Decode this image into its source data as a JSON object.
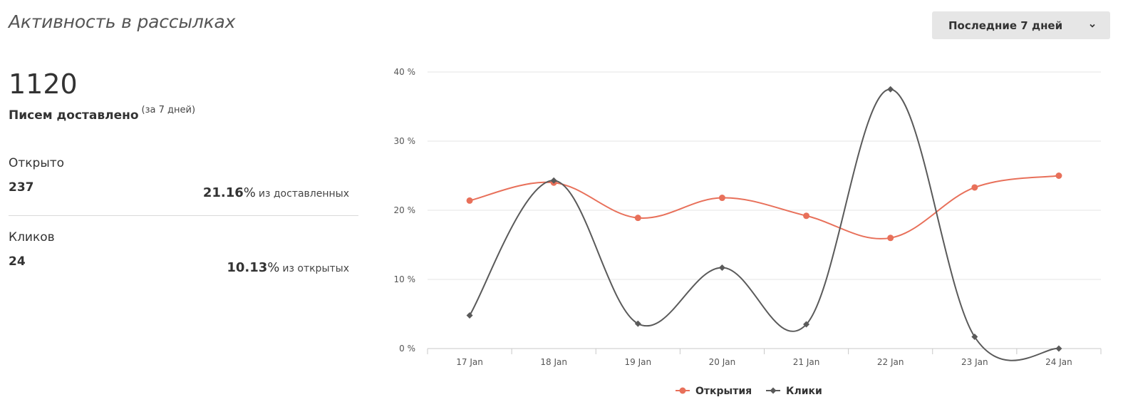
{
  "header": {
    "title": "Активность в рассылках",
    "period_dropdown": {
      "selected": "Последние 7 дней",
      "icon": "chevron-down-icon"
    }
  },
  "summary": {
    "delivered_count": "1120",
    "delivered_label": "Писем доставлено",
    "delivered_period": "(за 7 дней)",
    "opened": {
      "label": "Открыто",
      "value": "237",
      "percent": "21.16",
      "percent_sign": "%",
      "percent_text": "из доставленных"
    },
    "clicks": {
      "label": "Кликов",
      "value": "24",
      "percent": "10.13",
      "percent_sign": "%",
      "percent_text": "из открытых"
    }
  },
  "colors": {
    "opens": "#e8705a",
    "clicks": "#5a5a5a",
    "grid": "#e6e6e6",
    "dropdown_bg": "#e6e6e6"
  },
  "chart_data": {
    "type": "line",
    "categories": [
      "17 Jan",
      "18 Jan",
      "19 Jan",
      "20 Jan",
      "21 Jan",
      "22 Jan",
      "23 Jan",
      "24 Jan"
    ],
    "y_ticks": [
      "0 %",
      "10 %",
      "20 %",
      "30 %",
      "40 %"
    ],
    "ylim": [
      0,
      40
    ],
    "grid": true,
    "legend_position": "bottom-center",
    "series": [
      {
        "name": "Открытия",
        "marker": "circle",
        "color": "#e8705a",
        "values": [
          21.4,
          24.0,
          18.9,
          21.8,
          19.2,
          16.0,
          23.3,
          25.0
        ]
      },
      {
        "name": "Клики",
        "marker": "diamond",
        "color": "#5a5a5a",
        "values": [
          4.8,
          24.3,
          3.6,
          11.7,
          3.5,
          37.5,
          1.7,
          0.0
        ]
      }
    ]
  }
}
